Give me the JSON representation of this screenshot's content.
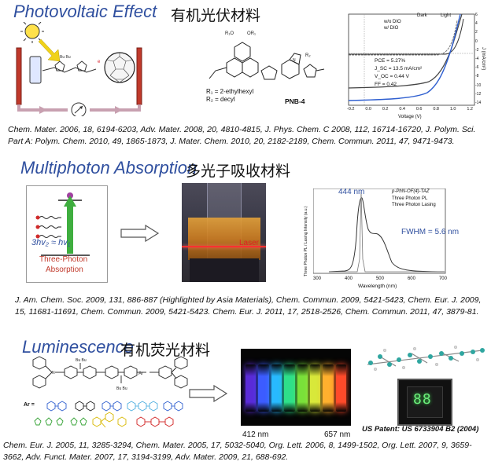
{
  "sections": [
    {
      "title": "Photovoltaic Effect",
      "cn_title": "有机光伏材料",
      "refs": "Chem. Mater. 2006, 18, 6194-6203, Adv. Mater. 2008, 20, 4810-4815, J. Phys. Chem. C 2008, 112, 16714-16720, J. Polym. Sci. Part A: Polym. Chem. 2010, 49, 1865-1873, J. Mater. Chem. 2010, 20, 2182-2189, Chem. Commun. 2011, 47, 9471-9473.",
      "molecule_labels": {
        "r1": "R₁ = 2-ethylhexyl",
        "r2": "R₂ = decyl",
        "name": "PNB-4"
      },
      "jv_chart": {
        "legend_header": [
          "Dark",
          "Light"
        ],
        "legend_rows": [
          "w/o DIO",
          "w/ DIO"
        ],
        "stats": [
          "PCE = 5.27%",
          "J_SC = 13.5 mA/cm²",
          "V_OC = 0.44 V",
          "FF = 0.42"
        ],
        "xlabel": "Voltage (V)",
        "ylabel": "J (mA/cm²)",
        "xticks": [
          "-0.2",
          "0.0",
          "0.2",
          "0.4",
          "0.6",
          "0.8",
          "1.0",
          "1.2"
        ],
        "yticks": [
          "6",
          "4",
          "2",
          "0",
          "-2",
          "-4",
          "-6",
          "-8",
          "-10",
          "-12",
          "-14"
        ]
      }
    },
    {
      "title": "Multiphoton Absorption",
      "cn_title": "多光子吸收材料",
      "refs": "J. Am. Chem. Soc. 2009, 131, 886-887 (Highlighted by Asia Materials), Chem. Commun. 2009, 5421-5423, Chem. Eur. J. 2009, 15, 11681-11691, Chem. Commun. 2009, 5421-5423. Chem. Eur. J. 2011, 17, 2518-2526, Chem. Commun. 2011, 47, 3879-81.",
      "diagram": {
        "equation": "3hv₂ ≈ hv₁",
        "caption_line1": "Three-Photon",
        "caption_line2": "Absorption"
      },
      "photo_label": "Laser",
      "pl_chart": {
        "peak_label": "444 nm",
        "fwhm_label": "FWHM = 5.6 nm",
        "legend_title": "p-PhN-OF(4)-TAZ",
        "legend_items": [
          "Three Photon PL",
          "Three Photon Lasing"
        ],
        "xlabel": "Wavelength (nm)",
        "ylabel": "Three Photon PL / Lasing Intensity (a.u.)",
        "xticks": [
          "300",
          "400",
          "500",
          "600",
          "700"
        ]
      }
    },
    {
      "title": "Luminescence",
      "cn_title": "有机荧光材料",
      "refs": "Chem. Eur. J. 2005, 11, 3285-3294, Chem. Mater. 2005, 17, 5032-5040, Org. Lett. 2006, 8, 1499-1502, Org. Lett. 2007, 9, 3659-3662, Adv. Funct. Mater. 2007, 17, 3194-3199,  Adv. Mater. 2009, 21, 688-692.",
      "ar_label": "Ar =",
      "vial_range": {
        "left": "412 nm",
        "right": "657 nm"
      },
      "vial_colors": [
        "#5a2bd8",
        "#3c5cff",
        "#28b9ff",
        "#2ee08a",
        "#79e03a",
        "#d8e83a",
        "#ffb02e",
        "#ff4a2a"
      ],
      "patent": "US Patent: US 6733904 B2 (2004)"
    }
  ]
}
